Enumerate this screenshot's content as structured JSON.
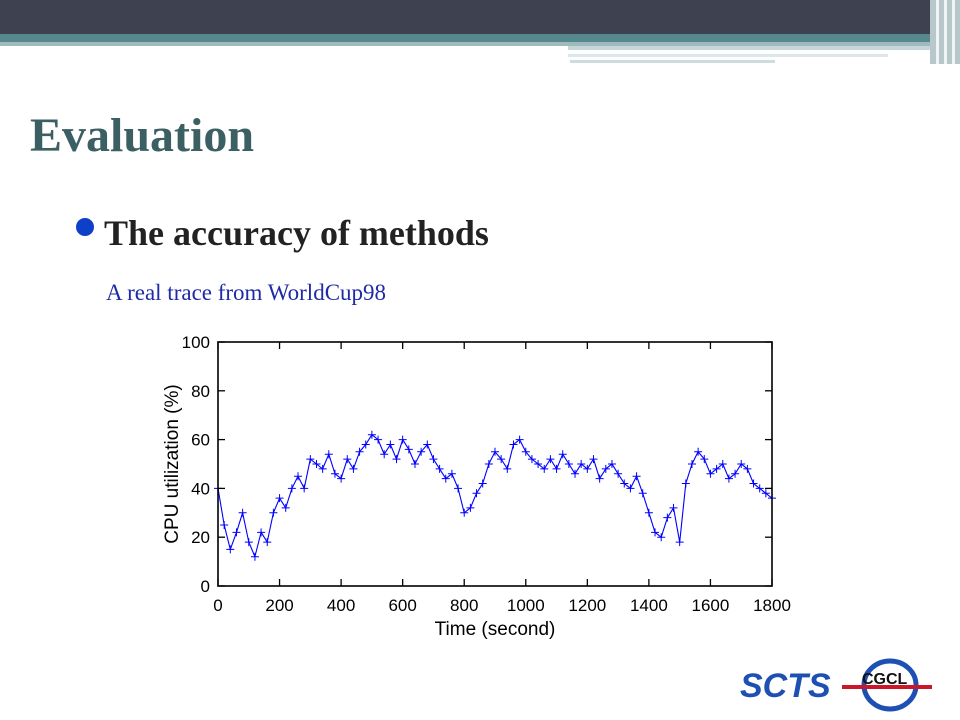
{
  "slide": {
    "title": "Evaluation",
    "bullet": "The accuracy of methods",
    "subtitle": "A real trace from WorldCup98"
  },
  "colors": {
    "title": "#3b5f63",
    "bullet": "#0d3fc8",
    "subtitle": "#1f2aa6",
    "series": "#0000ff",
    "topbar_dark": "#3d4150",
    "topbar_teal": "#55898e"
  },
  "logos": {
    "left": "SCTS",
    "right": "CGCL"
  },
  "chart_data": {
    "type": "line",
    "marker": "plus",
    "xlabel": "Time (second)",
    "ylabel": "CPU utilization (%)",
    "xlim": [
      0,
      1800
    ],
    "ylim": [
      0,
      100
    ],
    "xticks": [
      0,
      200,
      400,
      600,
      800,
      1000,
      1200,
      1400,
      1600,
      1800
    ],
    "yticks": [
      0,
      20,
      40,
      60,
      80,
      100
    ],
    "grid": false,
    "series": [
      {
        "x": [
          0,
          20,
          40,
          60,
          80,
          100,
          120,
          140,
          160,
          180,
          200,
          220,
          240,
          260,
          280,
          300,
          320,
          340,
          360,
          380,
          400,
          420,
          440,
          460,
          480,
          500,
          520,
          540,
          560,
          580,
          600,
          620,
          640,
          660,
          680,
          700,
          720,
          740,
          760,
          780,
          800,
          820,
          840,
          860,
          880,
          900,
          920,
          940,
          960,
          980,
          1000,
          1020,
          1040,
          1060,
          1080,
          1100,
          1120,
          1140,
          1160,
          1180,
          1200,
          1220,
          1240,
          1260,
          1280,
          1300,
          1320,
          1340,
          1360,
          1380,
          1400,
          1420,
          1440,
          1460,
          1480,
          1500,
          1520,
          1540,
          1560,
          1580,
          1600,
          1620,
          1640,
          1660,
          1680,
          1700,
          1720,
          1740,
          1760,
          1780,
          1800
        ],
        "y": [
          40,
          25,
          15,
          22,
          30,
          18,
          12,
          22,
          18,
          30,
          36,
          32,
          40,
          45,
          40,
          52,
          50,
          48,
          54,
          46,
          44,
          52,
          48,
          55,
          58,
          62,
          60,
          54,
          58,
          52,
          60,
          56,
          50,
          55,
          58,
          52,
          48,
          44,
          46,
          40,
          30,
          32,
          38,
          42,
          50,
          55,
          52,
          48,
          58,
          60,
          55,
          52,
          50,
          48,
          52,
          48,
          54,
          50,
          46,
          50,
          48,
          52,
          44,
          48,
          50,
          46,
          42,
          40,
          45,
          38,
          30,
          22,
          20,
          28,
          32,
          18,
          42,
          50,
          55,
          52,
          46,
          48,
          50,
          44,
          46,
          50,
          48,
          42,
          40,
          38,
          36
        ]
      }
    ]
  }
}
